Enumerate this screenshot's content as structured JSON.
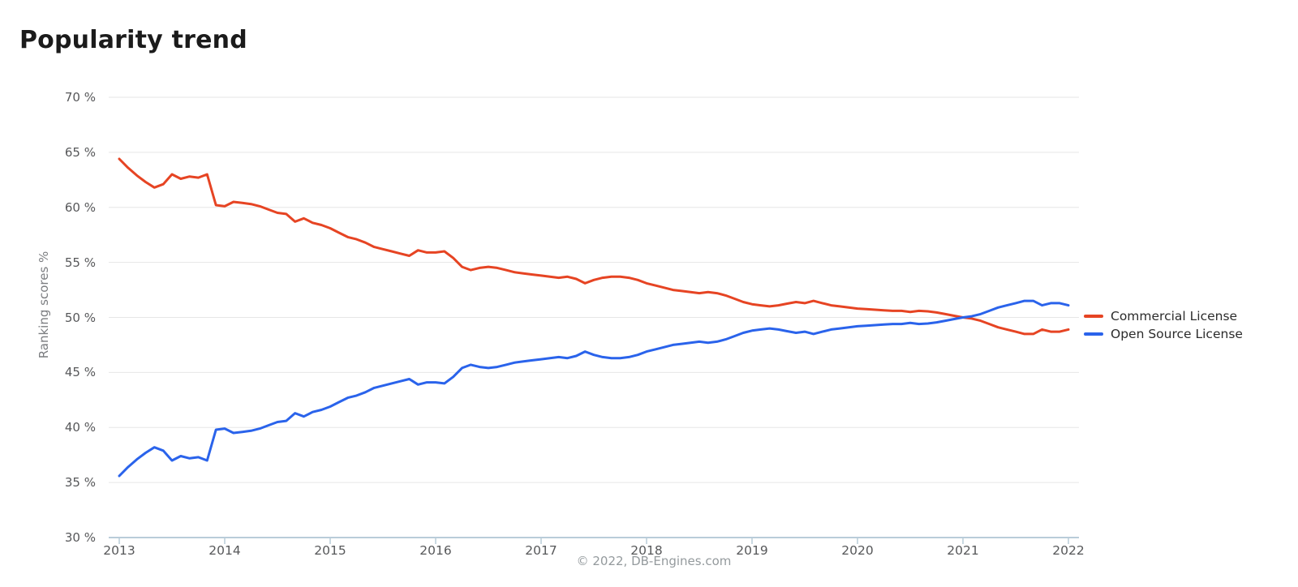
{
  "title": "Popularity trend",
  "footer": "© 2022, DB-Engines.com",
  "colors": {
    "commercial": "#e64423",
    "open_source": "#2a63eb",
    "grid": "#e6e6e6",
    "axis": "#b9ccd9",
    "tick_text": "#57585a",
    "title_text": "#1b1b1b",
    "axis_title_text": "#7b7d80",
    "legend_text": "#2c2c2c",
    "footer_text": "#949a9d"
  },
  "chart_data": {
    "type": "line",
    "title": "Popularity trend",
    "ylabel": "Ranking scores %",
    "xlabel": "",
    "ylim": [
      30,
      70
    ],
    "grid": "horizontal",
    "legend_position": "right",
    "x_interval": "monthly",
    "x_start": "2013-01",
    "x_end": "2022-01",
    "x_ticks": [
      "2013",
      "2014",
      "2015",
      "2016",
      "2017",
      "2018",
      "2019",
      "2020",
      "2021",
      "2022"
    ],
    "y_ticks": [
      {
        "value": 70,
        "label": "70 %"
      },
      {
        "value": 65,
        "label": "65 %"
      },
      {
        "value": 60,
        "label": "60 %"
      },
      {
        "value": 55,
        "label": "55 %"
      },
      {
        "value": 50,
        "label": "50 %"
      },
      {
        "value": 45,
        "label": "45 %"
      },
      {
        "value": 40,
        "label": "40 %"
      },
      {
        "value": 35,
        "label": "35 %"
      },
      {
        "value": 30,
        "label": "30 %"
      }
    ],
    "series": [
      {
        "name": "Commercial License",
        "color": "#e64423",
        "values": [
          64.4,
          63.6,
          62.9,
          62.3,
          61.8,
          62.1,
          63.0,
          62.6,
          62.8,
          62.7,
          63.0,
          60.2,
          60.1,
          60.5,
          60.4,
          60.3,
          60.1,
          59.8,
          59.5,
          59.4,
          58.7,
          59.0,
          58.6,
          58.4,
          58.1,
          57.7,
          57.3,
          57.1,
          56.8,
          56.4,
          56.2,
          56.0,
          55.8,
          55.6,
          56.1,
          55.9,
          55.9,
          56.0,
          55.4,
          54.6,
          54.3,
          54.5,
          54.6,
          54.5,
          54.3,
          54.1,
          54.0,
          53.9,
          53.8,
          53.7,
          53.6,
          53.7,
          53.5,
          53.1,
          53.4,
          53.6,
          53.7,
          53.7,
          53.6,
          53.4,
          53.1,
          52.9,
          52.7,
          52.5,
          52.4,
          52.3,
          52.2,
          52.3,
          52.2,
          52.0,
          51.7,
          51.4,
          51.2,
          51.1,
          51.0,
          51.1,
          51.25,
          51.4,
          51.3,
          51.5,
          51.3,
          51.1,
          51.0,
          50.9,
          50.8,
          50.75,
          50.7,
          50.65,
          50.6,
          50.6,
          50.5,
          50.6,
          50.55,
          50.45,
          50.3,
          50.15,
          50.0,
          49.9,
          49.7,
          49.4,
          49.1,
          48.9,
          48.7,
          48.5,
          48.5,
          48.9,
          48.7,
          48.7,
          48.9
        ]
      },
      {
        "name": "Open Source License",
        "color": "#2a63eb",
        "values": [
          35.6,
          36.4,
          37.1,
          37.7,
          38.2,
          37.9,
          37.0,
          37.4,
          37.2,
          37.3,
          37.0,
          39.8,
          39.9,
          39.5,
          39.6,
          39.7,
          39.9,
          40.2,
          40.5,
          40.6,
          41.3,
          41.0,
          41.4,
          41.6,
          41.9,
          42.3,
          42.7,
          42.9,
          43.2,
          43.6,
          43.8,
          44.0,
          44.2,
          44.4,
          43.9,
          44.1,
          44.1,
          44.0,
          44.6,
          45.4,
          45.7,
          45.5,
          45.4,
          45.5,
          45.7,
          45.9,
          46.0,
          46.1,
          46.2,
          46.3,
          46.4,
          46.3,
          46.5,
          46.9,
          46.6,
          46.4,
          46.3,
          46.3,
          46.4,
          46.6,
          46.9,
          47.1,
          47.3,
          47.5,
          47.6,
          47.7,
          47.8,
          47.7,
          47.8,
          48.0,
          48.3,
          48.6,
          48.8,
          48.9,
          49.0,
          48.9,
          48.75,
          48.6,
          48.7,
          48.5,
          48.7,
          48.9,
          49.0,
          49.1,
          49.2,
          49.25,
          49.3,
          49.35,
          49.4,
          49.4,
          49.5,
          49.4,
          49.45,
          49.55,
          49.7,
          49.85,
          50.0,
          50.1,
          50.3,
          50.6,
          50.9,
          51.1,
          51.3,
          51.5,
          51.5,
          51.1,
          51.3,
          51.3,
          51.1
        ]
      }
    ]
  }
}
